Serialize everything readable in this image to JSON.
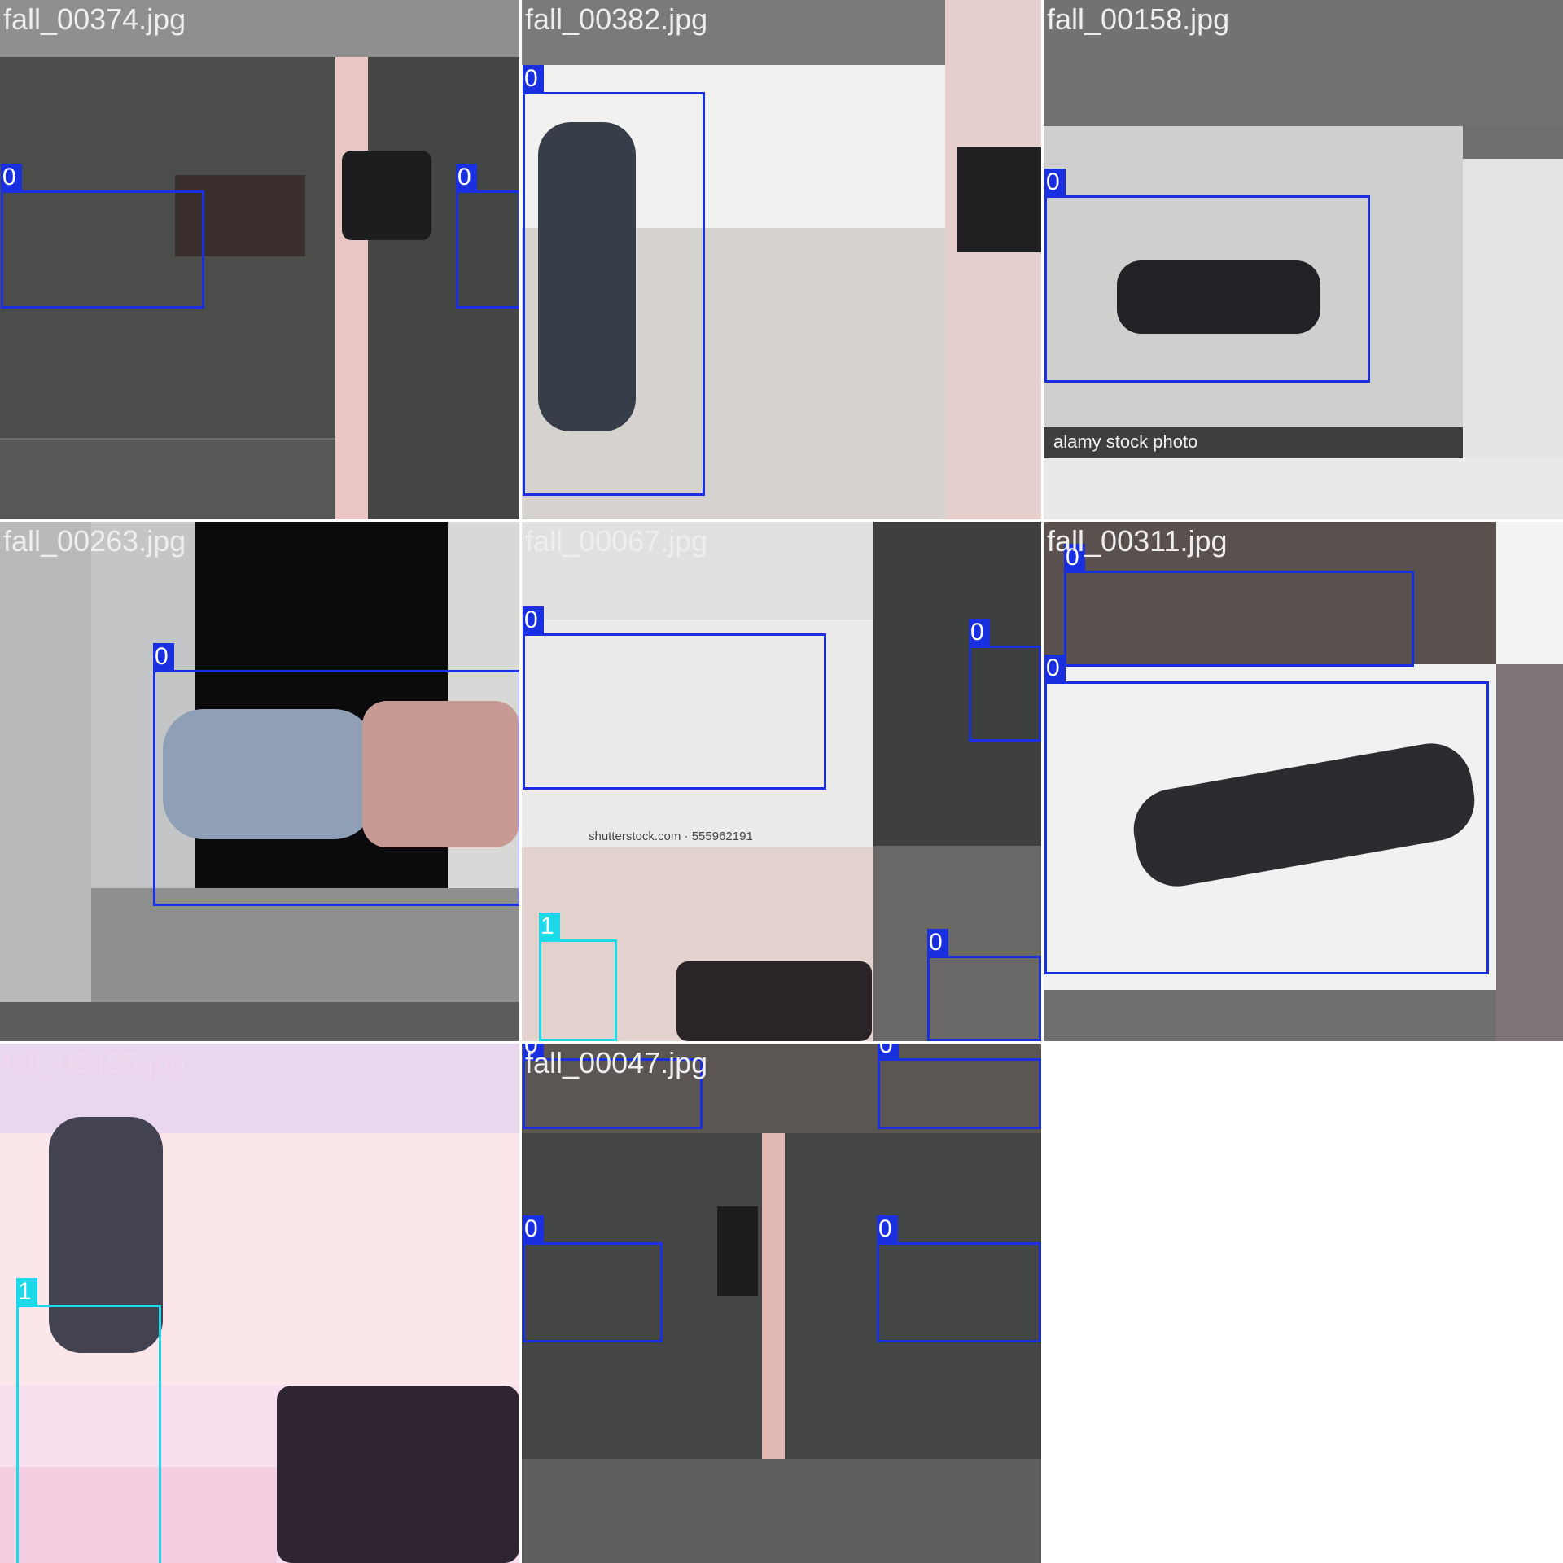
{
  "tiles": [
    {
      "filename": "fall_00374.jpg",
      "boxes": [
        {
          "label": "0"
        },
        {
          "label": "0"
        }
      ]
    },
    {
      "filename": "fall_00382.jpg",
      "boxes": [
        {
          "label": "0"
        }
      ]
    },
    {
      "filename": "fall_00158.jpg",
      "watermark": "alamy stock photo",
      "boxes": [
        {
          "label": "0"
        }
      ]
    },
    {
      "filename": "fall_00263.jpg",
      "boxes": [
        {
          "label": "0"
        }
      ]
    },
    {
      "filename": "fall_00067.jpg",
      "watermark": "shutterstock.com · 555962191",
      "boxes": [
        {
          "label": "0"
        },
        {
          "label": "0"
        },
        {
          "label": "1"
        },
        {
          "label": "0"
        }
      ]
    },
    {
      "filename": "fall_00311.jpg",
      "boxes": [
        {
          "label": "0"
        },
        {
          "label": "0"
        }
      ]
    },
    {
      "filename": "fall_00405.jpg",
      "boxes": [
        {
          "label": "1"
        }
      ]
    },
    {
      "filename": "fall_00047.jpg",
      "boxes": [
        {
          "label": "0"
        },
        {
          "label": "0"
        },
        {
          "label": "0"
        },
        {
          "label": "0"
        }
      ]
    }
  ],
  "colors": {
    "class_0": "#1a2fe0",
    "class_1": "#1cd8e8"
  }
}
